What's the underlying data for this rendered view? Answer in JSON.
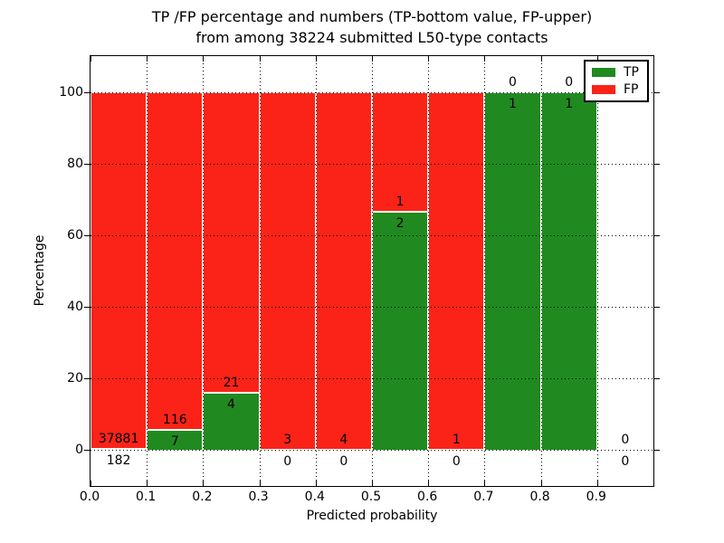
{
  "figure": {
    "title_line1": "TP /FP percentage and numbers (TP-bottom value, FP-upper)",
    "title_line2": "from among 38224 submitted L50-type contacts",
    "xlabel": "Predicted probability",
    "ylabel": "Percentage"
  },
  "chart_data": {
    "type": "bar",
    "stacked": true,
    "title": "TP /FP percentage and numbers (TP-bottom value, FP-upper) from among 38224 submitted L50-type contacts",
    "xlabel": "Predicted probability",
    "ylabel": "Percentage",
    "total_submitted_contacts": 38224,
    "xlim": [
      0.0,
      1.0
    ],
    "ylim": [
      -10,
      110
    ],
    "x_ticks": [
      0.0,
      0.1,
      0.2,
      0.3,
      0.4,
      0.5,
      0.6,
      0.7,
      0.8,
      0.9
    ],
    "x_tick_labels": [
      "0.0",
      "0.1",
      "0.2",
      "0.3",
      "0.4",
      "0.5",
      "0.6",
      "0.7",
      "0.8",
      "0.9"
    ],
    "y_ticks": [
      0,
      20,
      40,
      60,
      80,
      100
    ],
    "y_tick_labels": [
      "0",
      "20",
      "40",
      "60",
      "80",
      "100"
    ],
    "grid": "dotted",
    "annotation_rule": "FP count printed above TP/FP boundary, TP count printed below",
    "colors": {
      "TP": "#208a20",
      "FP": "#fb2318"
    },
    "legend": {
      "position": "upper right",
      "entries": [
        {
          "label": "TP",
          "color": "#208a20"
        },
        {
          "label": "FP",
          "color": "#fb2318"
        }
      ]
    },
    "bins": [
      {
        "x0": 0.0,
        "x1": 0.1,
        "tp": 182,
        "fp": 37881,
        "tp_percent": 0.5
      },
      {
        "x0": 0.1,
        "x1": 0.2,
        "tp": 7,
        "fp": 116,
        "tp_percent": 5.7
      },
      {
        "x0": 0.2,
        "x1": 0.3,
        "tp": 4,
        "fp": 21,
        "tp_percent": 16.0
      },
      {
        "x0": 0.3,
        "x1": 0.4,
        "tp": 0,
        "fp": 3,
        "tp_percent": 0.0
      },
      {
        "x0": 0.4,
        "x1": 0.5,
        "tp": 0,
        "fp": 4,
        "tp_percent": 0.0
      },
      {
        "x0": 0.5,
        "x1": 0.6,
        "tp": 2,
        "fp": 1,
        "tp_percent": 66.7
      },
      {
        "x0": 0.6,
        "x1": 0.7,
        "tp": 0,
        "fp": 1,
        "tp_percent": 0.0
      },
      {
        "x0": 0.7,
        "x1": 0.8,
        "tp": 1,
        "fp": 0,
        "tp_percent": 100.0
      },
      {
        "x0": 0.8,
        "x1": 0.9,
        "tp": 1,
        "fp": 0,
        "tp_percent": 100.0
      },
      {
        "x0": 0.9,
        "x1": 1.0,
        "tp": 0,
        "fp": 0,
        "tp_percent": null
      }
    ]
  }
}
